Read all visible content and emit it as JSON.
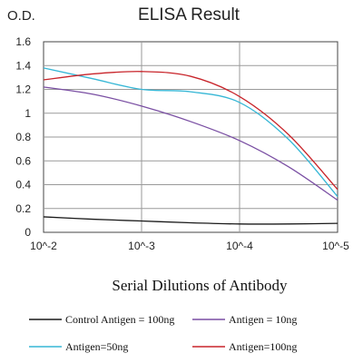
{
  "chart_data": {
    "type": "line",
    "title": "ELISA Result",
    "ylabel": "O.D.",
    "xlabel": "Serial Dilutions of Antibody",
    "x_ticks": [
      "10^-2",
      "10^-3",
      "10^-4",
      "10^-5"
    ],
    "y_ticks": [
      "0",
      "0.2",
      "0.4",
      "0.6",
      "0.8",
      "1",
      "1.2",
      "1.4",
      "1.6"
    ],
    "ylim": [
      0,
      1.6
    ],
    "x_log_exponent_range": [
      -2,
      -5
    ],
    "grid": true,
    "legend_position": "bottom",
    "series": [
      {
        "name": "Control Antigen = 100ng",
        "color": "#1a1a1a",
        "points": [
          [
            -2,
            0.13
          ],
          [
            -2.5,
            0.11
          ],
          [
            -3,
            0.095
          ],
          [
            -3.5,
            0.08
          ],
          [
            -4,
            0.07
          ],
          [
            -4.5,
            0.07
          ],
          [
            -5,
            0.075
          ]
        ]
      },
      {
        "name": "Antigen = 10ng",
        "color": "#7a4fa3",
        "points": [
          [
            -2,
            1.22
          ],
          [
            -2.5,
            1.16
          ],
          [
            -3,
            1.06
          ],
          [
            -3.5,
            0.93
          ],
          [
            -4,
            0.77
          ],
          [
            -4.5,
            0.55
          ],
          [
            -5,
            0.27
          ]
        ]
      },
      {
        "name": "Antigen=50ng",
        "color": "#36b7d6",
        "points": [
          [
            -2,
            1.38
          ],
          [
            -2.5,
            1.29
          ],
          [
            -3,
            1.2
          ],
          [
            -3.5,
            1.18
          ],
          [
            -4,
            1.09
          ],
          [
            -4.5,
            0.78
          ],
          [
            -5,
            0.3
          ]
        ]
      },
      {
        "name": "Antigen=100ng",
        "color": "#c8242a",
        "points": [
          [
            -2,
            1.28
          ],
          [
            -2.5,
            1.33
          ],
          [
            -3,
            1.35
          ],
          [
            -3.5,
            1.31
          ],
          [
            -4,
            1.14
          ],
          [
            -4.5,
            0.82
          ],
          [
            -5,
            0.36
          ]
        ]
      }
    ]
  }
}
